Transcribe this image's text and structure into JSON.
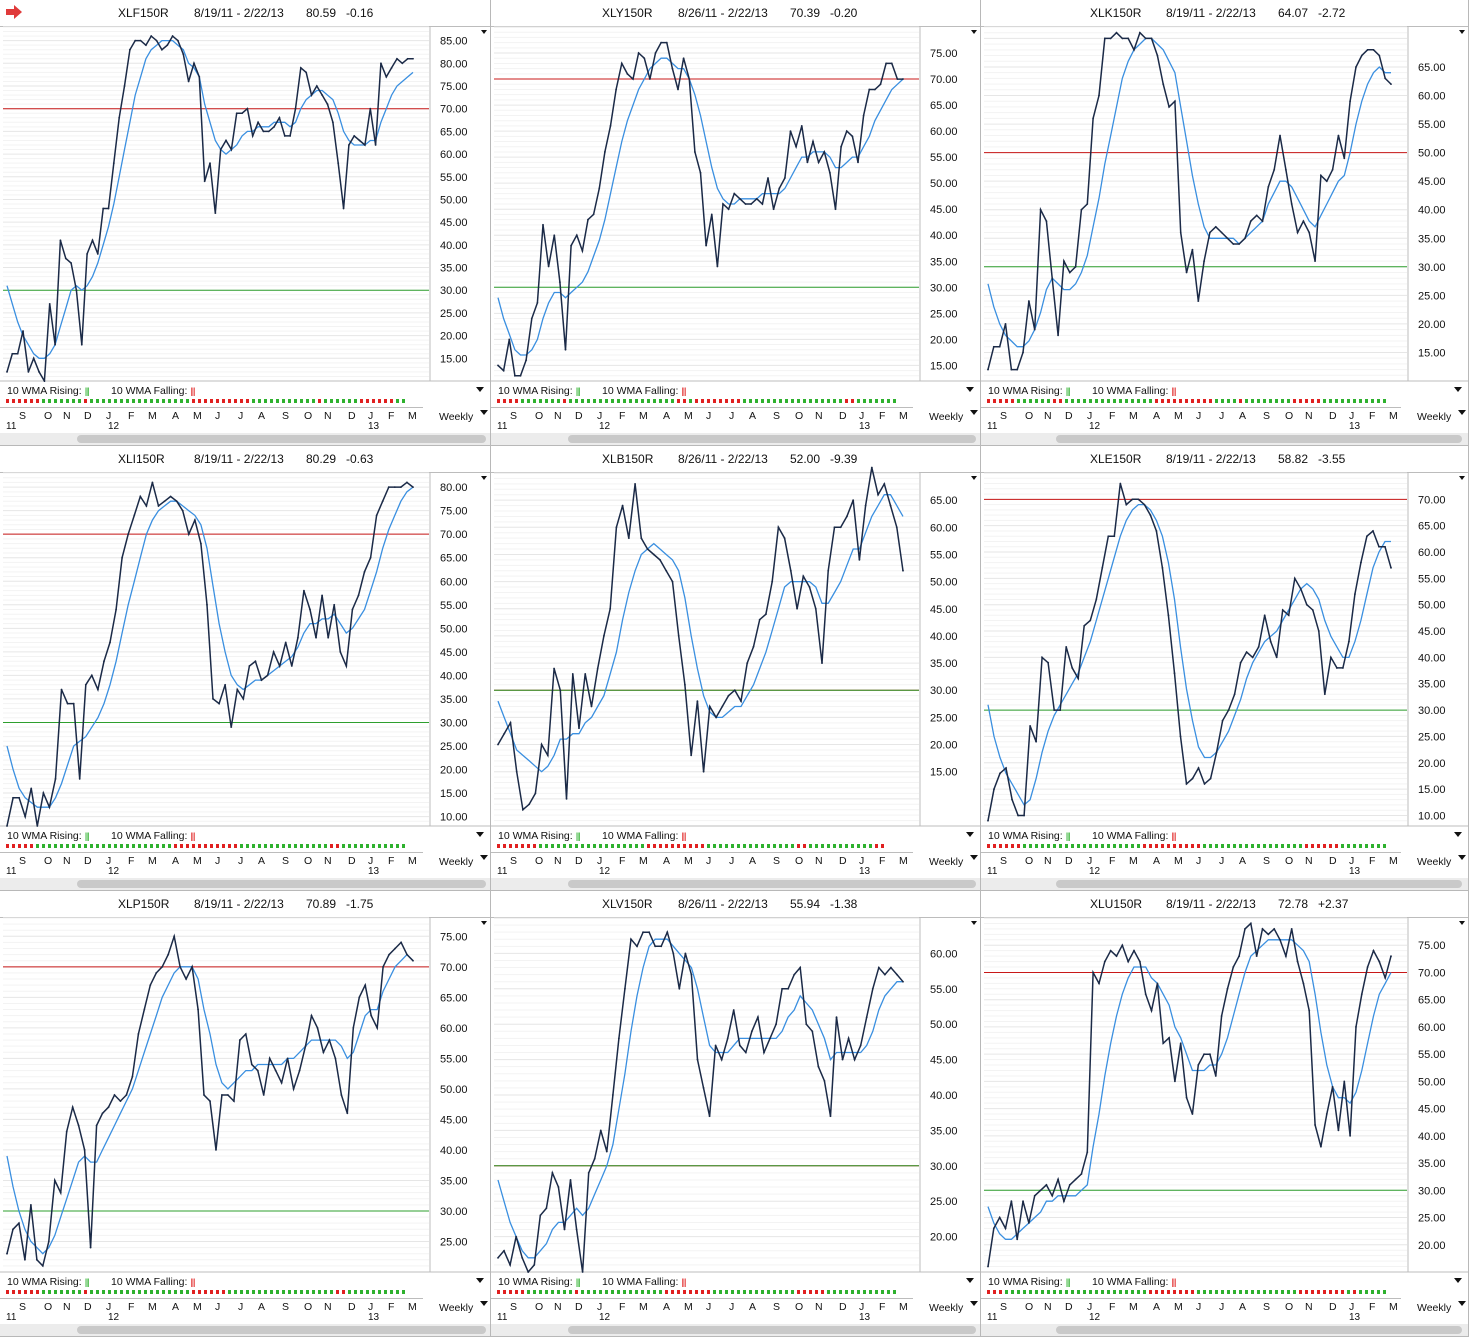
{
  "colors": {
    "price_line": "#1b2a47",
    "wma_line": "#3a8fe0",
    "upper_line": "#c81818",
    "lower_line": "#2e9f2e",
    "rising_dot": "#2eb12e",
    "falling_dot": "#e02020",
    "arrow": "#e03a3a"
  },
  "common": {
    "wma_rising_label": "10 WMA Rising:",
    "wma_falling_label": "10 WMA Falling:",
    "bars_glyph": "|||",
    "weekly_label": "Weekly",
    "months": [
      "S",
      "O",
      "N",
      "D",
      "J",
      "F",
      "M",
      "A",
      "M",
      "J",
      "J",
      "A",
      "S",
      "O",
      "N",
      "D",
      "J",
      "F",
      "M"
    ],
    "years": [
      "11",
      "12",
      "13"
    ]
  },
  "chart_data": [
    {
      "type": "line",
      "symbol": "XLF150R",
      "date_range": "8/19/11 - 2/22/13",
      "last": "80.59",
      "change": "-0.16",
      "y_ticks": [
        15,
        20,
        25,
        30,
        35,
        40,
        45,
        50,
        55,
        60,
        65,
        70,
        75,
        80,
        85
      ],
      "ylim": [
        10,
        88
      ],
      "upper": 70,
      "lower": 30,
      "price": [
        12,
        16,
        16,
        21,
        12,
        15,
        12,
        10,
        27,
        18,
        41,
        37,
        36,
        30,
        18,
        38,
        41,
        38,
        48,
        48,
        58,
        68,
        75,
        83,
        85,
        85,
        84,
        86,
        85,
        83,
        84,
        86,
        85,
        82,
        76,
        80,
        77,
        54,
        58,
        47,
        61,
        63,
        61,
        69,
        69,
        70,
        64,
        67,
        65,
        65,
        66,
        68,
        64,
        64,
        70,
        79,
        78,
        73,
        75,
        73,
        71,
        67,
        58,
        48,
        62,
        64,
        63,
        62,
        70,
        62,
        80,
        77,
        79,
        81,
        80,
        81,
        81
      ],
      "wma": [
        31,
        27,
        23,
        20,
        18,
        16,
        15,
        15,
        16,
        18,
        22,
        26,
        30,
        31,
        30,
        31,
        33,
        36,
        40,
        44,
        49,
        55,
        61,
        67,
        73,
        77,
        81,
        83,
        84,
        85,
        85,
        85,
        84,
        83,
        80,
        79,
        77,
        71,
        67,
        63,
        61,
        60,
        61,
        62,
        64,
        65,
        65,
        66,
        66,
        66,
        67,
        67,
        67,
        66,
        67,
        70,
        72,
        73,
        74,
        74,
        73,
        72,
        69,
        65,
        63,
        62,
        62,
        62,
        63,
        63,
        67,
        70,
        73,
        75,
        76,
        77,
        78
      ]
    },
    {
      "type": "line",
      "symbol": "XLY150R",
      "date_range": "8/26/11 - 2/22/13",
      "last": "70.39",
      "change": "-0.20",
      "y_ticks": [
        15,
        20,
        25,
        30,
        35,
        40,
        45,
        50,
        55,
        60,
        65,
        70,
        75
      ],
      "ylim": [
        12,
        80
      ],
      "upper": 70,
      "lower": 30,
      "price": [
        15,
        14,
        20,
        13,
        13,
        16,
        24,
        27,
        42,
        34,
        40,
        31,
        18,
        38,
        40,
        37,
        43,
        44,
        49,
        56,
        61,
        68,
        73,
        71,
        70,
        75,
        74,
        70,
        75,
        77,
        77,
        72,
        68,
        74,
        70,
        56,
        52,
        38,
        44,
        34,
        46,
        45,
        48,
        47,
        46,
        46,
        47,
        46,
        51,
        45,
        49,
        51,
        60,
        57,
        61,
        54,
        58,
        54,
        56,
        52,
        45,
        57,
        60,
        59,
        54,
        63,
        68,
        68,
        69,
        73,
        73,
        70,
        70
      ],
      "wma": [
        28,
        24,
        21,
        18,
        17,
        17,
        18,
        20,
        24,
        27,
        29,
        29,
        28,
        29,
        30,
        31,
        33,
        36,
        39,
        43,
        48,
        53,
        58,
        62,
        65,
        68,
        70,
        72,
        73,
        74,
        74,
        73,
        72,
        72,
        70,
        67,
        63,
        58,
        53,
        49,
        47,
        46,
        46,
        47,
        47,
        47,
        47,
        48,
        48,
        48,
        48,
        49,
        51,
        53,
        55,
        55,
        56,
        56,
        56,
        55,
        53,
        53,
        54,
        55,
        55,
        57,
        59,
        62,
        64,
        66,
        68,
        69,
        70
      ]
    },
    {
      "type": "line",
      "symbol": "XLK150R",
      "date_range": "8/19/11 - 2/22/13",
      "last": "64.07",
      "change": "-2.72",
      "y_ticks": [
        15,
        20,
        25,
        30,
        35,
        40,
        45,
        50,
        55,
        60,
        65
      ],
      "ylim": [
        10,
        72
      ],
      "upper": 50,
      "lower": 30,
      "price": [
        12,
        16,
        16,
        20,
        12,
        12,
        15,
        24,
        19,
        40,
        38,
        28,
        18,
        31,
        29,
        30,
        40,
        41,
        56,
        60,
        70,
        70,
        71,
        70,
        70,
        68,
        71,
        70,
        70,
        67,
        62,
        58,
        59,
        36,
        29,
        33,
        24,
        31,
        36,
        37,
        36,
        35,
        34,
        34,
        35,
        38,
        39,
        38,
        44,
        47,
        53,
        47,
        41,
        36,
        38,
        36,
        31,
        46,
        45,
        47,
        53,
        49,
        59,
        65,
        67,
        68,
        68,
        67,
        63,
        62
      ],
      "wma": [
        27,
        23,
        20,
        18,
        17,
        16,
        16,
        17,
        19,
        22,
        26,
        28,
        27,
        26,
        26,
        27,
        29,
        32,
        37,
        42,
        48,
        53,
        58,
        63,
        66,
        68,
        69,
        70,
        70,
        69,
        68,
        66,
        64,
        58,
        52,
        46,
        41,
        37,
        35,
        35,
        35,
        35,
        35,
        34,
        35,
        36,
        37,
        38,
        41,
        43,
        45,
        45,
        44,
        42,
        40,
        38,
        37,
        39,
        41,
        43,
        45,
        46,
        50,
        55,
        59,
        62,
        64,
        65,
        64,
        64
      ]
    },
    {
      "type": "line",
      "symbol": "XLI150R",
      "date_range": "8/19/11 - 2/22/13",
      "last": "80.29",
      "change": "-0.63",
      "y_ticks": [
        10,
        15,
        20,
        25,
        30,
        35,
        40,
        45,
        50,
        55,
        60,
        65,
        70,
        75,
        80
      ],
      "ylim": [
        8,
        83
      ],
      "upper": 70,
      "lower": 30,
      "price": [
        8,
        14,
        14,
        10,
        16,
        8,
        15,
        12,
        18,
        37,
        34,
        34,
        18,
        38,
        40,
        37,
        43,
        47,
        54,
        65,
        70,
        74,
        78,
        76,
        81,
        76,
        77,
        78,
        77,
        75,
        70,
        73,
        68,
        55,
        35,
        34,
        38,
        29,
        37,
        35,
        42,
        43,
        39,
        40,
        45,
        42,
        47,
        42,
        48,
        58,
        54,
        48,
        57,
        48,
        55,
        45,
        42,
        54,
        57,
        62,
        65,
        74,
        77,
        80,
        80,
        80,
        81,
        80
      ],
      "wma": [
        25,
        20,
        16,
        14,
        13,
        12,
        12,
        12,
        14,
        17,
        21,
        25,
        26,
        27,
        29,
        31,
        34,
        38,
        43,
        49,
        55,
        60,
        65,
        70,
        73,
        75,
        76,
        77,
        77,
        76,
        75,
        74,
        72,
        67,
        59,
        51,
        45,
        40,
        38,
        37,
        38,
        39,
        39,
        40,
        41,
        42,
        43,
        44,
        46,
        49,
        51,
        51,
        52,
        52,
        53,
        51,
        49,
        50,
        52,
        54,
        58,
        62,
        67,
        71,
        74,
        77,
        79,
        80
      ]
    },
    {
      "type": "line",
      "symbol": "XLB150R",
      "date_range": "8/26/11 - 2/22/13",
      "last": "52.00",
      "change": "-9.39",
      "y_ticks": [
        15,
        20,
        25,
        30,
        35,
        40,
        45,
        50,
        55,
        60,
        65
      ],
      "ylim": [
        5,
        70
      ],
      "upper": 30,
      "lower": 30,
      "price": [
        20,
        22,
        24,
        15,
        8,
        9,
        11,
        20,
        18,
        34,
        30,
        10,
        33,
        23,
        33,
        27,
        34,
        40,
        45,
        60,
        64,
        58,
        68,
        58,
        56,
        55,
        54,
        52,
        50,
        40,
        31,
        18,
        28,
        15,
        27,
        25,
        27,
        29,
        30,
        28,
        35,
        38,
        43,
        44,
        50,
        60,
        58,
        52,
        45,
        51,
        49,
        45,
        35,
        52,
        60,
        60,
        62,
        65,
        54,
        64,
        71,
        66,
        68,
        64,
        60,
        52
      ],
      "wma": [
        28,
        25,
        22,
        19,
        18,
        17,
        16,
        15,
        16,
        18,
        21,
        21,
        22,
        22,
        24,
        25,
        27,
        29,
        33,
        37,
        43,
        48,
        52,
        55,
        56,
        57,
        56,
        55,
        54,
        52,
        47,
        40,
        34,
        29,
        26,
        25,
        25,
        26,
        27,
        27,
        29,
        31,
        34,
        37,
        41,
        45,
        49,
        50,
        50,
        50,
        50,
        49,
        46,
        46,
        48,
        50,
        53,
        56,
        56,
        59,
        62,
        64,
        66,
        66,
        64,
        62
      ]
    },
    {
      "type": "line",
      "symbol": "XLE150R",
      "date_range": "8/19/11 - 2/22/13",
      "last": "58.82",
      "change": "-3.55",
      "y_ticks": [
        10,
        15,
        20,
        25,
        30,
        35,
        40,
        45,
        50,
        55,
        60,
        65,
        70
      ],
      "ylim": [
        8,
        75
      ],
      "upper": 70,
      "lower": 30,
      "price": [
        9,
        15,
        18,
        19,
        13,
        10,
        10,
        27,
        24,
        40,
        39,
        30,
        30,
        42,
        38,
        36,
        46,
        47,
        51,
        57,
        63,
        63,
        73,
        69,
        70,
        70,
        69,
        67,
        64,
        57,
        48,
        37,
        25,
        16,
        17,
        19,
        16,
        17,
        22,
        28,
        30,
        33,
        39,
        41,
        40,
        42,
        48,
        43,
        40,
        49,
        48,
        55,
        53,
        50,
        49,
        45,
        33,
        40,
        38,
        38,
        43,
        52,
        58,
        63,
        64,
        61,
        61,
        57
      ],
      "wma": [
        31,
        25,
        21,
        18,
        16,
        14,
        12,
        13,
        17,
        22,
        26,
        29,
        31,
        33,
        35,
        37,
        40,
        43,
        47,
        51,
        55,
        59,
        63,
        66,
        68,
        69,
        69,
        68,
        66,
        63,
        58,
        51,
        42,
        34,
        28,
        23,
        21,
        21,
        22,
        24,
        26,
        29,
        32,
        36,
        39,
        41,
        43,
        44,
        45,
        47,
        49,
        51,
        53,
        54,
        53,
        51,
        47,
        44,
        42,
        40,
        40,
        43,
        47,
        52,
        57,
        60,
        62,
        62
      ]
    },
    {
      "type": "line",
      "symbol": "XLP150R",
      "date_range": "8/19/11 - 2/22/13",
      "last": "70.89",
      "change": "-1.75",
      "y_ticks": [
        25,
        30,
        35,
        40,
        45,
        50,
        55,
        60,
        65,
        70,
        75
      ],
      "ylim": [
        20,
        78
      ],
      "upper": 70,
      "lower": 30,
      "price": [
        23,
        27,
        28,
        22,
        31,
        22,
        21,
        25,
        35,
        33,
        43,
        47,
        44,
        40,
        24,
        44,
        46,
        47,
        49,
        48,
        49,
        52,
        59,
        63,
        67,
        69,
        70,
        72,
        75,
        70,
        68,
        70,
        63,
        49,
        48,
        40,
        49,
        49,
        48,
        58,
        59,
        54,
        53,
        49,
        55,
        53,
        51,
        55,
        50,
        53,
        57,
        62,
        60,
        56,
        58,
        55,
        49,
        46,
        60,
        65,
        67,
        62,
        60,
        70,
        72,
        73,
        74,
        72,
        71
      ],
      "wma": [
        39,
        34,
        30,
        27,
        25,
        24,
        23,
        24,
        26,
        29,
        32,
        35,
        38,
        39,
        38,
        38,
        40,
        42,
        44,
        46,
        48,
        50,
        53,
        56,
        59,
        62,
        65,
        67,
        69,
        70,
        70,
        70,
        68,
        63,
        59,
        54,
        51,
        50,
        51,
        52,
        53,
        53,
        54,
        54,
        54,
        54,
        54,
        55,
        55,
        56,
        57,
        58,
        58,
        58,
        58,
        58,
        57,
        55,
        56,
        59,
        62,
        63,
        63,
        66,
        68,
        70,
        71,
        72,
        71
      ]
    },
    {
      "type": "line",
      "symbol": "XLV150R",
      "date_range": "8/26/11 - 2/22/13",
      "last": "55.94",
      "change": "-1.38",
      "y_ticks": [
        20,
        25,
        30,
        35,
        40,
        45,
        50,
        55,
        60
      ],
      "ylim": [
        15,
        65
      ],
      "upper": 30,
      "lower": 30,
      "price": [
        17,
        18,
        16,
        20,
        17,
        15,
        16,
        23,
        24,
        29,
        27,
        21,
        28,
        21,
        15,
        29,
        31,
        35,
        32,
        40,
        48,
        55,
        62,
        61,
        63,
        63,
        61,
        61,
        63,
        60,
        55,
        60,
        57,
        45,
        41,
        37,
        47,
        45,
        48,
        52,
        47,
        46,
        49,
        51,
        46,
        48,
        50,
        55,
        55,
        57,
        58,
        50,
        49,
        44,
        42,
        37,
        51,
        45,
        48,
        45,
        47,
        51,
        55,
        58,
        57,
        58,
        57,
        56
      ],
      "wma": [
        28,
        25,
        22,
        20,
        18,
        17,
        17,
        18,
        19,
        21,
        22,
        22,
        23,
        24,
        23,
        24,
        26,
        28,
        30,
        33,
        38,
        43,
        49,
        54,
        58,
        61,
        62,
        62,
        62,
        61,
        60,
        59,
        58,
        55,
        51,
        47,
        46,
        46,
        46,
        47,
        48,
        48,
        48,
        48,
        48,
        48,
        48,
        49,
        51,
        52,
        54,
        53,
        52,
        50,
        48,
        45,
        46,
        46,
        46,
        46,
        46,
        47,
        49,
        52,
        54,
        55,
        56,
        56
      ]
    },
    {
      "type": "line",
      "symbol": "XLU150R",
      "date_range": "8/19/11 - 2/22/13",
      "last": "72.78",
      "change": "+2.37",
      "y_ticks": [
        20,
        25,
        30,
        35,
        40,
        45,
        50,
        55,
        60,
        65,
        70,
        75
      ],
      "ylim": [
        15,
        80
      ],
      "upper": 70,
      "lower": 30,
      "price": [
        16,
        23,
        25,
        23,
        28,
        21,
        28,
        24,
        29,
        30,
        31,
        29,
        32,
        28,
        31,
        32,
        33,
        37,
        70,
        68,
        72,
        74,
        73,
        75,
        72,
        74,
        72,
        66,
        63,
        68,
        57,
        58,
        50,
        57,
        47,
        44,
        53,
        55,
        55,
        51,
        62,
        67,
        71,
        73,
        78,
        79,
        73,
        78,
        77,
        78,
        76,
        73,
        78,
        72,
        68,
        63,
        42,
        38,
        44,
        49,
        41,
        50,
        40,
        60,
        66,
        71,
        74,
        72,
        69,
        73
      ],
      "wma": [
        27,
        24,
        22,
        21,
        21,
        22,
        23,
        24,
        25,
        26,
        28,
        28,
        29,
        29,
        29,
        29,
        30,
        31,
        38,
        44,
        51,
        57,
        62,
        66,
        69,
        71,
        71,
        71,
        69,
        68,
        66,
        64,
        60,
        58,
        55,
        52,
        52,
        52,
        53,
        53,
        55,
        58,
        62,
        66,
        70,
        73,
        74,
        75,
        76,
        76,
        76,
        76,
        76,
        75,
        74,
        72,
        66,
        59,
        53,
        49,
        47,
        47,
        46,
        48,
        52,
        57,
        62,
        66,
        68,
        70
      ]
    }
  ]
}
